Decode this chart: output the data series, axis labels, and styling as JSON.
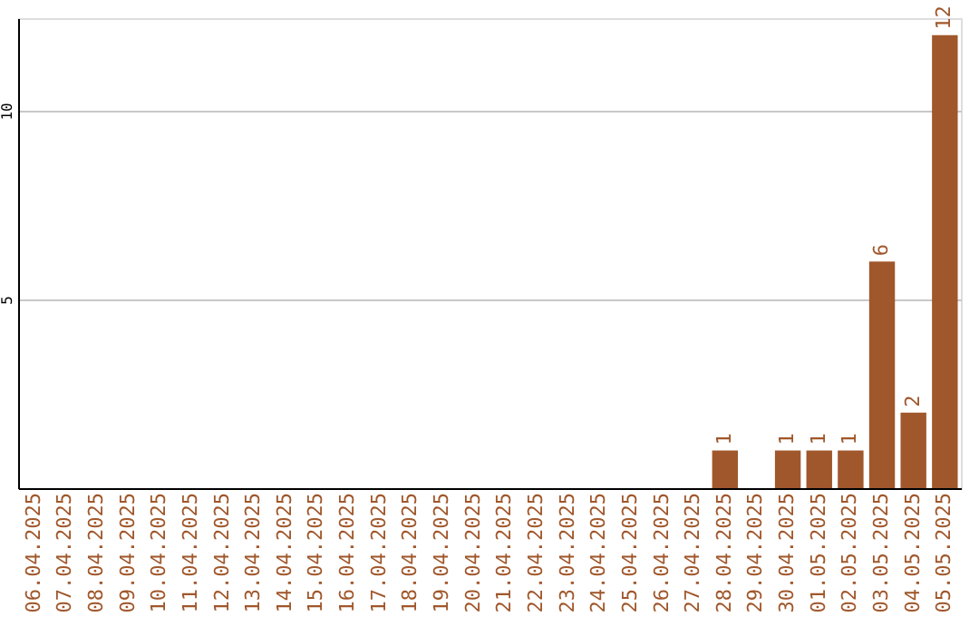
{
  "chart_data": {
    "type": "bar",
    "categories": [
      "06.04.2025",
      "07.04.2025",
      "08.04.2025",
      "09.04.2025",
      "10.04.2025",
      "11.04.2025",
      "12.04.2025",
      "13.04.2025",
      "14.04.2025",
      "15.04.2025",
      "16.04.2025",
      "17.04.2025",
      "18.04.2025",
      "19.04.2025",
      "20.04.2025",
      "21.04.2025",
      "22.04.2025",
      "23.04.2025",
      "24.04.2025",
      "25.04.2025",
      "26.04.2025",
      "27.04.2025",
      "28.04.2025",
      "29.04.2025",
      "30.04.2025",
      "01.05.2025",
      "02.05.2025",
      "03.05.2025",
      "04.05.2025",
      "05.05.2025"
    ],
    "values": [
      0,
      0,
      0,
      0,
      0,
      0,
      0,
      0,
      0,
      0,
      0,
      0,
      0,
      0,
      0,
      0,
      0,
      0,
      0,
      0,
      0,
      0,
      1,
      0,
      1,
      1,
      1,
      6,
      2,
      12
    ],
    "value_labels": [
      null,
      null,
      null,
      null,
      null,
      null,
      null,
      null,
      null,
      null,
      null,
      null,
      null,
      null,
      null,
      null,
      null,
      null,
      null,
      null,
      null,
      null,
      "1",
      null,
      "1",
      "1",
      "1",
      "6",
      "2",
      "12"
    ],
    "color": "#a0572b",
    "ylim": [
      0,
      12.45
    ],
    "yticks": [
      5,
      10
    ],
    "grid": "y"
  }
}
